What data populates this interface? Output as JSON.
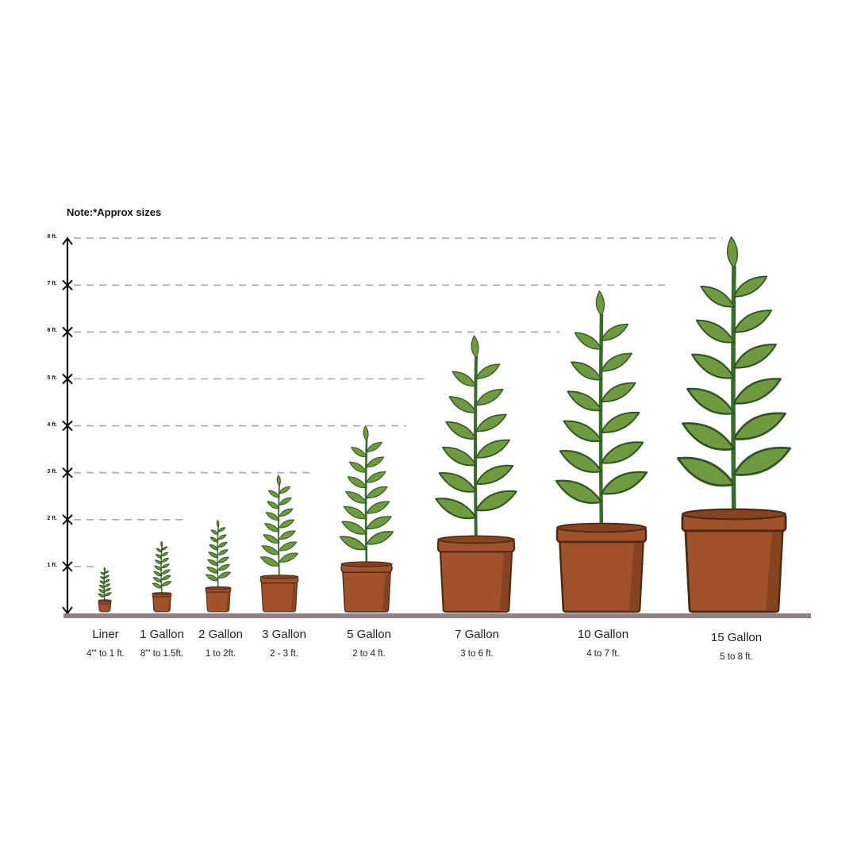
{
  "note": "Note:*Approx sizes",
  "axis": {
    "ticks": [
      "1 ft.",
      "2 ft.",
      "3 ft.",
      "4 ft.",
      "5 ft.",
      "6 ft.",
      "7 ft.",
      "8 ft."
    ],
    "unit": "ft"
  },
  "colors": {
    "leaf": "#6f9a40",
    "leaf_outline": "#2e5424",
    "stem": "#3a6b2a",
    "pot": "#a0522d",
    "pot_shadow": "#86431f",
    "pot_outline": "#4a2a15",
    "ground": "#8e8282",
    "gridline": "#a8a8a8"
  },
  "sizes": [
    {
      "name": "Liner",
      "range": "4\"' to 1 ft."
    },
    {
      "name": "1 Gallon",
      "range": "8\"' to 1.5ft."
    },
    {
      "name": "2 Gallon",
      "range": "1 to 2ft."
    },
    {
      "name": "3 Gallon",
      "range": "2 - 3 ft."
    },
    {
      "name": "5 Gallon",
      "range": "2 to 4 ft."
    },
    {
      "name": "7 Gallon",
      "range": "3 to 6 ft."
    },
    {
      "name": "10 Gallon",
      "range": "4 to 7 ft."
    },
    {
      "name": "15 Gallon",
      "range": "5 to 8 ft."
    }
  ]
}
